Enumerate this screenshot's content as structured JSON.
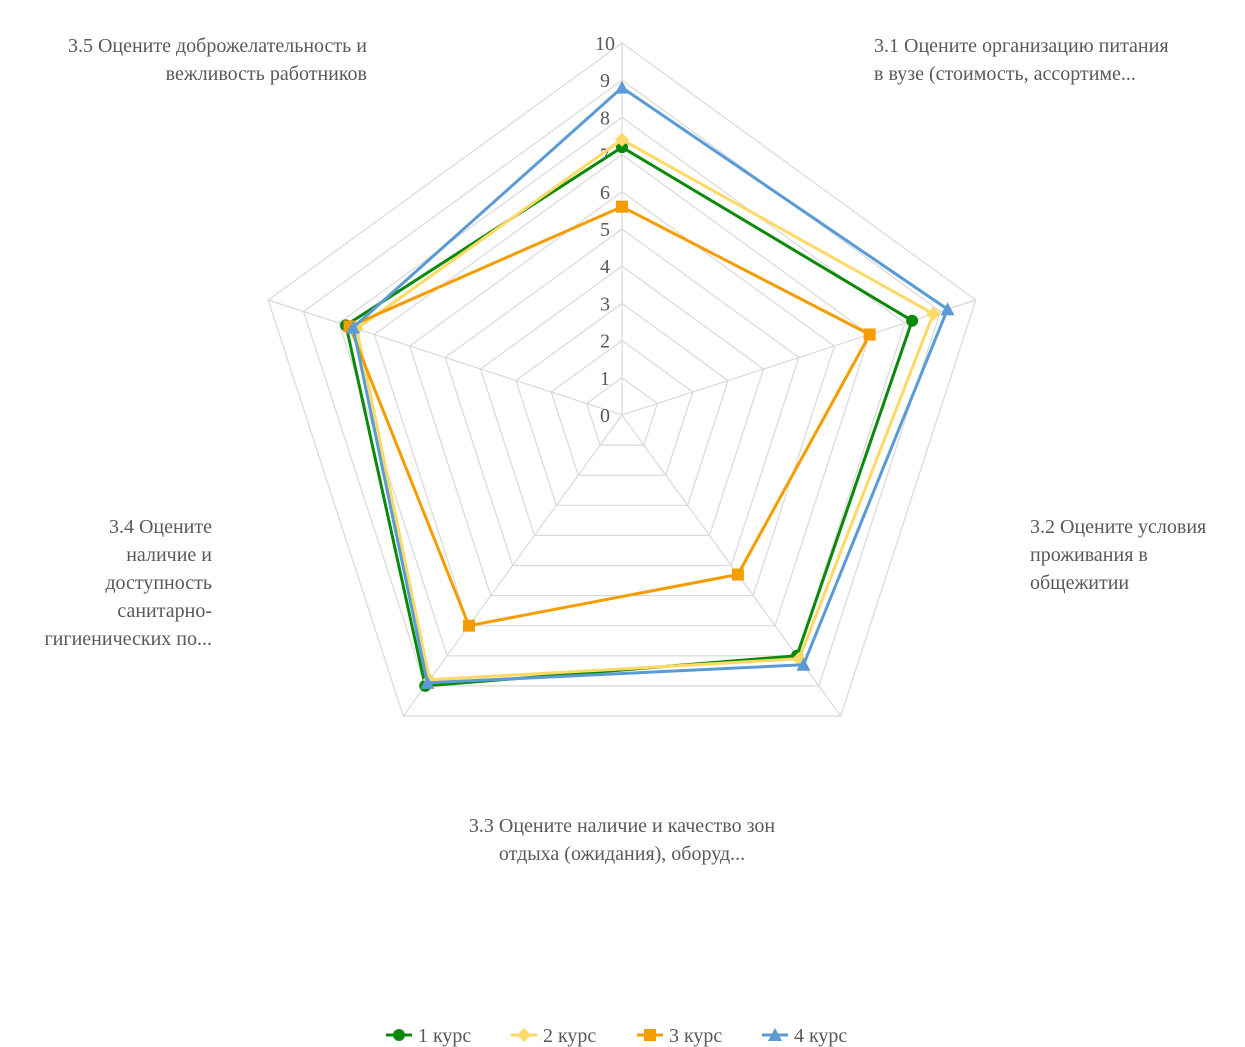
{
  "chart_data": {
    "type": "radar",
    "title": "",
    "categories": [
      [
        "3.1 Оцените организацию питания",
        "в вузе (стоимость, ассортиме..."
      ],
      [
        "3.2 Оцените условия",
        "проживания в",
        "общежитии"
      ],
      [
        "3.3 Оцените наличие и качество зон",
        "отдыха (ожидания), оборуд..."
      ],
      [
        "3.4 Оцените",
        "наличие и",
        "доступность",
        "санитарно-",
        "гигиенических по..."
      ],
      [
        "3.5 Оцените доброжелательность и",
        "вежливость работников"
      ]
    ],
    "rlim": [
      0,
      10
    ],
    "ticks": [
      "0",
      "1",
      "2",
      "3",
      "4",
      "5",
      "6",
      "7",
      "8",
      "9",
      "10"
    ],
    "grid": true,
    "legend": "bottom",
    "series": [
      {
        "name": "1 курс",
        "color": "#0a8a0a",
        "marker": "circle",
        "values": [
          7.2,
          8.2,
          8.0,
          9.0,
          7.8
        ]
      },
      {
        "name": "2 курс",
        "color": "#ffd966",
        "marker": "diamond",
        "values": [
          7.4,
          8.8,
          8.1,
          8.8,
          7.5
        ]
      },
      {
        "name": "3 курс",
        "color": "#f59c00",
        "marker": "square",
        "values": [
          5.6,
          7.0,
          5.3,
          7.0,
          7.7
        ]
      },
      {
        "name": "4 курс",
        "color": "#5b9bd5",
        "marker": "triangle",
        "values": [
          8.8,
          9.2,
          8.3,
          8.9,
          7.6
        ]
      }
    ]
  }
}
